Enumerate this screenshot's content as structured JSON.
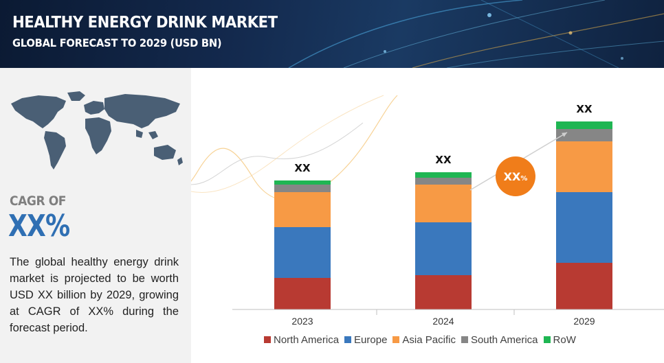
{
  "header": {
    "title": "HEALTHY ENERGY DRINK MARKET",
    "subtitle": "GLOBAL FORECAST TO 2029 (USD BN)"
  },
  "left_panel": {
    "cagr_label": "CAGR OF",
    "cagr_value": "XX%",
    "description": "The global healthy energy drink market is projected to be worth USD XX billion by 2029, growing at CAGR of XX% during the forecast period."
  },
  "colors": {
    "north_america": "#b83a32",
    "europe": "#3a78bd",
    "asia_pacific": "#f79a45",
    "south_america": "#868686",
    "row": "#1fb653",
    "cagr_badge": "#f07d1a",
    "accent_blue": "#2f6fb3"
  },
  "chart_data": {
    "type": "bar",
    "stacked": true,
    "categories": [
      "2023",
      "2024",
      "2029"
    ],
    "series": [
      {
        "name": "North America",
        "values": [
          46,
          50,
          68
        ]
      },
      {
        "name": "Europe",
        "values": [
          74,
          77,
          103
        ]
      },
      {
        "name": "Asia Pacific",
        "values": [
          51,
          55,
          74
        ]
      },
      {
        "name": "South America",
        "values": [
          11,
          10,
          18
        ]
      },
      {
        "name": "RoW",
        "values": [
          6,
          8,
          11
        ]
      }
    ],
    "totals_labels": [
      "XX",
      "XX",
      "XX"
    ],
    "cagr_badge": {
      "value": "XX",
      "unit": "%"
    },
    "ylim": [
      0,
      300
    ],
    "grid": false,
    "legend": "bottom"
  }
}
